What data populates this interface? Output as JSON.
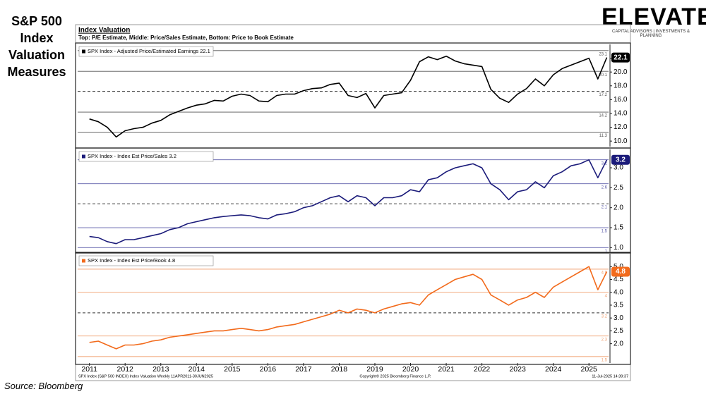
{
  "page_title": "S&P 500 Index Valuation Measures",
  "source": "Source: Bloomberg",
  "logo": {
    "name": "ELEVATE",
    "tagline": "CAPITAL ADVISORS | INVESTMENTS & PLANNING"
  },
  "footer": {
    "left": "SPX Index (S&P 500 INDEX) Index Valuation Weekly 11APR2011-30JUN2025",
    "center": "Copyright© 2025 Bloomberg Finance L.P.",
    "right": "11-Jul-2025 14:39:37"
  },
  "chart_data": {
    "type": "line",
    "title": "Index Valuation",
    "subtitle": "Top: P/E Estimate, Middle: Price/Sales Estimate, Bottom: Price to Book Estimate",
    "x": [
      2011,
      2011.25,
      2011.5,
      2011.75,
      2012,
      2012.25,
      2012.5,
      2012.75,
      2013,
      2013.25,
      2013.5,
      2013.75,
      2014,
      2014.25,
      2014.5,
      2014.75,
      2015,
      2015.25,
      2015.5,
      2015.75,
      2016,
      2016.25,
      2016.5,
      2016.75,
      2017,
      2017.25,
      2017.5,
      2017.75,
      2018,
      2018.25,
      2018.5,
      2018.75,
      2019,
      2019.25,
      2019.5,
      2019.75,
      2020,
      2020.25,
      2020.5,
      2020.75,
      2021,
      2021.25,
      2021.5,
      2021.75,
      2022,
      2022.25,
      2022.5,
      2022.75,
      2023,
      2023.25,
      2023.5,
      2023.75,
      2024,
      2024.25,
      2024.5,
      2024.75,
      2025,
      2025.25,
      2025.5
    ],
    "xlim": [
      2010.67,
      2025.55
    ],
    "xticks": [
      2011,
      2012,
      2013,
      2014,
      2015,
      2016,
      2017,
      2018,
      2019,
      2020,
      2021,
      2022,
      2023,
      2024,
      2025
    ],
    "panels": [
      {
        "ylim": [
          9.2,
          24.0
        ],
        "yticks": [
          {
            "value": 10,
            "label": "10.0"
          },
          {
            "value": 12,
            "label": "12.0"
          },
          {
            "value": 14,
            "label": "14.0"
          },
          {
            "value": 16,
            "label": "16.0"
          },
          {
            "value": 18,
            "label": "18.0"
          },
          {
            "value": 20,
            "label": "20.0"
          },
          {
            "value": 22,
            "label": "22.0"
          }
        ],
        "reference_lines": [
          23.1,
          20.1,
          17.2,
          14.2,
          11.3
        ],
        "mean_line": 17.2,
        "line_color": "#555555",
        "series": [
          {
            "name": "SPX Index - Adjusted Price/Estimated Earnings 22.1",
            "color": "#000000",
            "last_value": 22.1,
            "values": [
              13.2,
              12.8,
              12.0,
              10.6,
              11.5,
              11.8,
              12.0,
              12.6,
              13.0,
              13.8,
              14.3,
              14.8,
              15.2,
              15.4,
              15.9,
              15.8,
              16.5,
              16.8,
              16.6,
              15.8,
              15.7,
              16.6,
              16.8,
              16.8,
              17.3,
              17.6,
              17.7,
              18.2,
              18.4,
              16.6,
              16.3,
              16.9,
              14.8,
              16.6,
              16.8,
              17.0,
              18.8,
              21.5,
              22.2,
              21.8,
              22.3,
              21.6,
              21.2,
              21.0,
              20.8,
              17.5,
              16.2,
              15.6,
              16.8,
              17.6,
              19.0,
              18.0,
              19.6,
              20.5,
              21.0,
              21.5,
              22.0,
              19.0,
              22.1
            ]
          }
        ]
      },
      {
        "ylim": [
          0.9,
          3.46
        ],
        "yticks": [
          {
            "value": 1,
            "label": "1.0"
          },
          1.5,
          {
            "value": 2,
            "label": "2.0"
          },
          2.5,
          {
            "value": 3,
            "label": "3.0"
          }
        ],
        "reference_lines": [
          3.2,
          2.6,
          2.1,
          1.5,
          1.0
        ],
        "mean_line": 2.1,
        "line_color": "#5a5aa8",
        "series": [
          {
            "name": "SPX Index - Index Est Price/Sales 3.2",
            "color": "#1b1b7a",
            "last_value": 3.2,
            "values": [
              1.28,
              1.25,
              1.15,
              1.1,
              1.2,
              1.2,
              1.25,
              1.3,
              1.35,
              1.45,
              1.5,
              1.6,
              1.65,
              1.7,
              1.75,
              1.78,
              1.8,
              1.82,
              1.8,
              1.75,
              1.72,
              1.82,
              1.85,
              1.9,
              2.0,
              2.05,
              2.15,
              2.25,
              2.3,
              2.15,
              2.3,
              2.25,
              2.05,
              2.25,
              2.25,
              2.3,
              2.45,
              2.4,
              2.7,
              2.75,
              2.9,
              3.0,
              3.05,
              3.1,
              3.0,
              2.6,
              2.45,
              2.2,
              2.4,
              2.45,
              2.65,
              2.5,
              2.8,
              2.9,
              3.05,
              3.1,
              3.2,
              2.75,
              3.2
            ]
          }
        ]
      },
      {
        "ylim": [
          1.25,
          5.5
        ],
        "yticks": [
          {
            "value": 2,
            "label": "2.0"
          },
          2.5,
          {
            "value": 3,
            "label": "3.0"
          },
          3.5,
          {
            "value": 4,
            "label": "4.0"
          },
          4.5,
          {
            "value": 5,
            "label": "5.0"
          }
        ],
        "reference_lines": [
          4.9,
          4.0,
          3.2,
          2.3,
          1.5
        ],
        "mean_line": 3.2,
        "line_color": "#f0a070",
        "series": [
          {
            "name": "SPX Index - Index Est Price/Book 4.8",
            "color": "#f26a1b",
            "last_value": 4.8,
            "values": [
              2.05,
              2.1,
              1.95,
              1.8,
              1.95,
              1.95,
              2.0,
              2.1,
              2.15,
              2.25,
              2.3,
              2.35,
              2.4,
              2.45,
              2.5,
              2.5,
              2.55,
              2.6,
              2.55,
              2.5,
              2.55,
              2.65,
              2.7,
              2.75,
              2.85,
              2.95,
              3.05,
              3.15,
              3.3,
              3.2,
              3.35,
              3.3,
              3.2,
              3.35,
              3.45,
              3.55,
              3.6,
              3.5,
              3.9,
              4.1,
              4.3,
              4.5,
              4.6,
              4.7,
              4.5,
              3.9,
              3.7,
              3.5,
              3.7,
              3.8,
              4.0,
              3.8,
              4.2,
              4.4,
              4.6,
              4.8,
              5.0,
              4.1,
              4.8
            ]
          }
        ]
      }
    ]
  }
}
